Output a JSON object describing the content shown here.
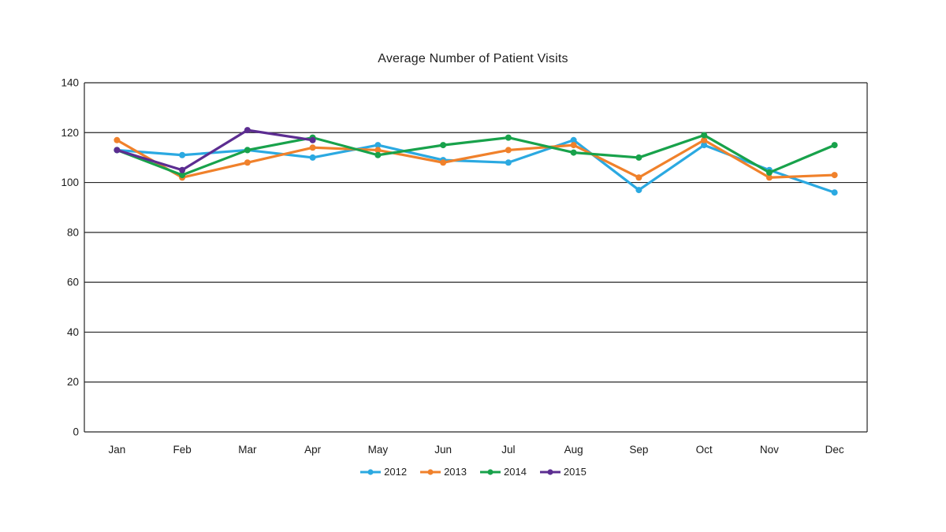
{
  "chart_data": {
    "type": "line",
    "title": "Average Number of Patient Visits",
    "xlabel": "",
    "ylabel": "",
    "ylim": [
      0,
      140
    ],
    "ytick_step": 20,
    "yticks": [
      140,
      120,
      100,
      80,
      60,
      40,
      20,
      0
    ],
    "grid": "horizontal",
    "legend_position": "bottom",
    "plot_border_color": "#262626",
    "gridline_color": "#262626",
    "background_color": "#ffffff",
    "categories": [
      "Jan",
      "Feb",
      "Mar",
      "Apr",
      "May",
      "Jun",
      "Jul",
      "Aug",
      "Sep",
      "Oct",
      "Nov",
      "Dec"
    ],
    "series": [
      {
        "name": "2012",
        "color": "#2BA9E1",
        "values": [
          113,
          111,
          113,
          110,
          115,
          109,
          108,
          117,
          97,
          115,
          105,
          96
        ]
      },
      {
        "name": "2013",
        "color": "#F0812B",
        "values": [
          117,
          102,
          108,
          114,
          113,
          108,
          113,
          115,
          102,
          117,
          102,
          103
        ]
      },
      {
        "name": "2014",
        "color": "#18A24B",
        "values": [
          113,
          103,
          113,
          118,
          111,
          115,
          118,
          112,
          110,
          119,
          104,
          115
        ]
      },
      {
        "name": "2015",
        "color": "#5C2D91",
        "values": [
          113,
          105,
          121,
          117,
          null,
          null,
          null,
          null,
          null,
          null,
          null,
          null
        ]
      }
    ]
  }
}
